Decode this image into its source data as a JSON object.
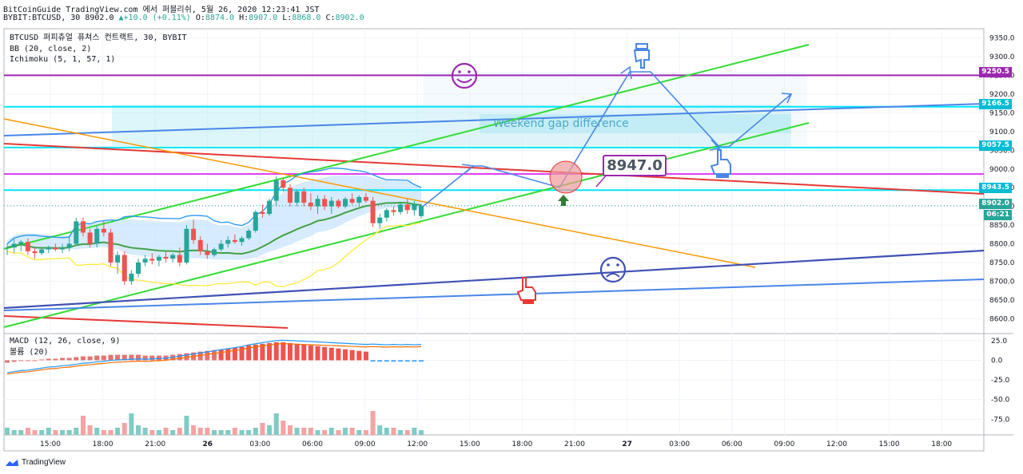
{
  "header": {
    "line1": "BitCoinGuide TradingView.com 에서 퍼블리쉬, 5월 26, 2020 12:23:41 JST",
    "symbol": "BYBIT:BTCUSD, 30",
    "last": "8902.0",
    "change": "▲+10.0 (+0.11%)",
    "o_label": "O:",
    "o_val": "8874.0",
    "h_label": "H:",
    "h_val": "8907.0",
    "l_label": "L:",
    "l_val": "8868.0",
    "c_label": "C:",
    "c_val": "8902.0"
  },
  "legend": {
    "main": "BTCUSD 퍼피츄얼 퓨쳐스 컨트랙트, 30, BYBIT",
    "bb": "BB (20, close, 2)",
    "ichimoku": "Ichimoku (5, 1, 57, 1)",
    "macd": "MACD (12, 26, close, 9)",
    "volume": "볼륨 (20)"
  },
  "annotations": {
    "callout": "8947.0",
    "gap_text": "Weekend gap difference",
    "smile_icon": "☺",
    "frown_icon": "☹",
    "hand_icon": "hand-pointer"
  },
  "price_badges": {
    "b9250": "9250.5",
    "b9166": "9166.5",
    "b9057": "9057.5",
    "b8943": "8943.5",
    "b8902": "8902.0",
    "countdown": "06:21"
  },
  "footer": {
    "brand": "TradingView"
  },
  "colors": {
    "up": "#26a69a",
    "down": "#ef5350",
    "purple": "#9c27b0",
    "cyan": "#00bcd4",
    "green_channel": "#33dd33",
    "red_line": "#e53935",
    "orange": "#ff9800",
    "blue": "#3f51b5"
  },
  "chart_data": {
    "type": "candlestick",
    "symbol": "BTCUSD",
    "interval": "30",
    "price_axis": {
      "range": [
        8560,
        9375
      ],
      "ticks": [
        9350,
        9300,
        9250,
        9200,
        9150,
        9100,
        9050,
        9000,
        8950,
        8900,
        8850,
        8800,
        8750,
        8700,
        8650,
        8600
      ]
    },
    "macd_axis": {
      "range": [
        -95,
        32
      ],
      "ticks": [
        25,
        0,
        -25,
        -50,
        -75
      ]
    },
    "time_labels": [
      "15:00",
      "18:00",
      "21:00",
      "26",
      "03:00",
      "06:00",
      "09:00",
      "12:00",
      "15:00",
      "18:00",
      "21:00",
      "27",
      "03:00",
      "06:00",
      "09:00",
      "12:00",
      "15:00",
      "18:00"
    ],
    "candles": [
      [
        8790,
        8800,
        8770,
        8790
      ],
      [
        8790,
        8812,
        8775,
        8800
      ],
      [
        8800,
        8810,
        8780,
        8805
      ],
      [
        8805,
        8815,
        8770,
        8780
      ],
      [
        8780,
        8790,
        8760,
        8775
      ],
      [
        8775,
        8790,
        8770,
        8785
      ],
      [
        8785,
        8795,
        8775,
        8790
      ],
      [
        8790,
        8800,
        8780,
        8785
      ],
      [
        8785,
        8800,
        8775,
        8790
      ],
      [
        8790,
        8820,
        8780,
        8800
      ],
      [
        8800,
        8870,
        8795,
        8860
      ],
      [
        8860,
        8870,
        8820,
        8830
      ],
      [
        8830,
        8840,
        8790,
        8800
      ],
      [
        8800,
        8850,
        8790,
        8840
      ],
      [
        8840,
        8860,
        8820,
        8830
      ],
      [
        8830,
        8840,
        8740,
        8750
      ],
      [
        8750,
        8780,
        8720,
        8770
      ],
      [
        8770,
        8780,
        8690,
        8700
      ],
      [
        8700,
        8730,
        8690,
        8720
      ],
      [
        8720,
        8760,
        8710,
        8750
      ],
      [
        8750,
        8770,
        8740,
        8760
      ],
      [
        8760,
        8775,
        8745,
        8755
      ],
      [
        8755,
        8770,
        8740,
        8765
      ],
      [
        8765,
        8780,
        8750,
        8760
      ],
      [
        8760,
        8775,
        8750,
        8770
      ],
      [
        8770,
        8790,
        8740,
        8750
      ],
      [
        8750,
        8850,
        8745,
        8840
      ],
      [
        8840,
        8865,
        8800,
        8810
      ],
      [
        8810,
        8820,
        8770,
        8780
      ],
      [
        8780,
        8800,
        8760,
        8770
      ],
      [
        8770,
        8790,
        8765,
        8785
      ],
      [
        8785,
        8810,
        8780,
        8800
      ],
      [
        8800,
        8820,
        8790,
        8810
      ],
      [
        8810,
        8825,
        8800,
        8805
      ],
      [
        8805,
        8820,
        8795,
        8815
      ],
      [
        8815,
        8840,
        8810,
        8835
      ],
      [
        8835,
        8890,
        8830,
        8885
      ],
      [
        8885,
        8905,
        8870,
        8880
      ],
      [
        8880,
        8920,
        8875,
        8915
      ],
      [
        8915,
        8980,
        8900,
        8970
      ],
      [
        8970,
        8975,
        8940,
        8950
      ],
      [
        8950,
        8960,
        8900,
        8910
      ],
      [
        8910,
        8945,
        8900,
        8940
      ],
      [
        8940,
        8950,
        8900,
        8910
      ],
      [
        8910,
        8935,
        8890,
        8900
      ],
      [
        8900,
        8930,
        8880,
        8920
      ],
      [
        8920,
        8930,
        8890,
        8900
      ],
      [
        8900,
        8925,
        8880,
        8915
      ],
      [
        8915,
        8920,
        8895,
        8900
      ],
      [
        8900,
        8925,
        8895,
        8920
      ],
      [
        8920,
        8935,
        8905,
        8910
      ],
      [
        8910,
        8930,
        8900,
        8925
      ],
      [
        8925,
        8935,
        8910,
        8915
      ],
      [
        8915,
        8925,
        8845,
        8855
      ],
      [
        8855,
        8880,
        8840,
        8870
      ],
      [
        8870,
        8895,
        8860,
        8890
      ],
      [
        8890,
        8900,
        8875,
        8885
      ],
      [
        8885,
        8910,
        8878,
        8905
      ],
      [
        8905,
        8920,
        8880,
        8890
      ],
      [
        8890,
        8915,
        8875,
        8905
      ],
      [
        8874,
        8907,
        8868,
        8902
      ]
    ],
    "horizontal_levels": [
      9250.5,
      9166.5,
      9057.5,
      8943.5,
      8902.0
    ],
    "macd": [
      -2,
      -1,
      0,
      0,
      1,
      2,
      3,
      3,
      4,
      4,
      5,
      6,
      6,
      7,
      7,
      8,
      8,
      8,
      8,
      8,
      7,
      7,
      7,
      7,
      8,
      9,
      10,
      11,
      12,
      13,
      14,
      15,
      16,
      17,
      18,
      20,
      21,
      22,
      23,
      24,
      24,
      23,
      22,
      21,
      20,
      19,
      18,
      17,
      16,
      15,
      14,
      13,
      12,
      12,
      11,
      10,
      10,
      9,
      9,
      8,
      8
    ],
    "volume": [
      3,
      2,
      2,
      3,
      2,
      2,
      3,
      2,
      2,
      2,
      3,
      8,
      4,
      3,
      2,
      2,
      3,
      5,
      9,
      4,
      3,
      2,
      2,
      3,
      2,
      3,
      8,
      4,
      3,
      3,
      2,
      2,
      2,
      3,
      2,
      2,
      3,
      5,
      4,
      9,
      6,
      4,
      3,
      3,
      3,
      2,
      2,
      3,
      2,
      3,
      3,
      2,
      2,
      10,
      4,
      3,
      3,
      2,
      2,
      3,
      2
    ]
  }
}
